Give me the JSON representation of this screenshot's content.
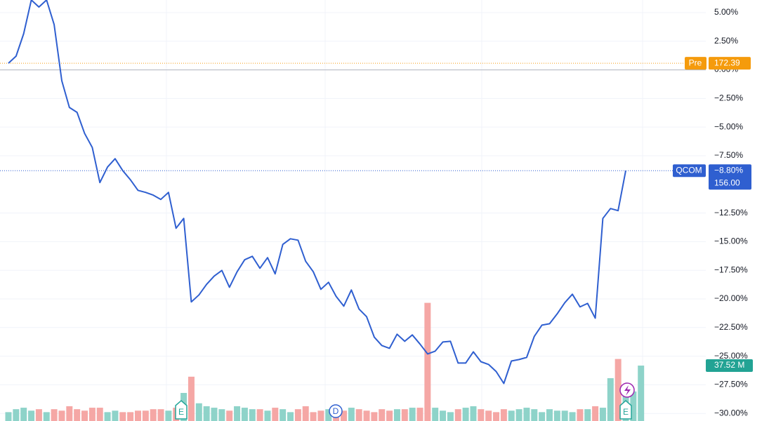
{
  "chart_data": {
    "type": "line",
    "series": [
      {
        "name": "QCOM",
        "color": "#2f5fd0",
        "values": [
          0.58,
          1.2,
          3.16,
          6.1,
          5.49,
          6.1,
          3.95,
          -0.95,
          -3.28,
          -3.71,
          -5.55,
          -6.78,
          -9.84,
          -8.49,
          -7.76,
          -8.8,
          -9.59,
          -10.52,
          -10.7,
          -10.94,
          -11.31,
          -10.7,
          -13.83,
          -12.97,
          -20.26,
          -19.65,
          -18.73,
          -18.0,
          -17.51,
          -18.98,
          -17.63,
          -16.58,
          -16.28,
          -17.32,
          -16.4,
          -17.81,
          -15.24,
          -14.75,
          -14.87,
          -16.71,
          -17.63,
          -19.16,
          -18.55,
          -19.78,
          -20.63,
          -19.22,
          -20.88,
          -21.55,
          -23.33,
          -24.07,
          -24.31,
          -23.08,
          -23.7,
          -23.14,
          -23.94,
          -24.8,
          -24.56,
          -23.76,
          -23.7,
          -25.6,
          -25.6,
          -24.62,
          -25.48,
          -25.72,
          -26.34,
          -27.38,
          -25.42,
          -25.29,
          -25.11,
          -23.27,
          -22.29,
          -22.17,
          -21.31,
          -20.33,
          -19.59,
          -20.7,
          -20.39,
          -21.68,
          -12.97,
          -12.11,
          -12.29,
          -8.8
        ],
        "last_value_label": "−8.80%",
        "last_price_label": "156.00"
      }
    ],
    "volume": {
      "values": [
        6,
        8,
        9,
        7,
        8,
        6,
        8,
        7,
        10,
        8,
        7,
        9,
        9,
        6,
        7,
        6,
        6,
        7,
        7,
        8,
        8,
        7,
        9,
        19,
        30,
        12,
        10,
        9,
        8,
        7,
        10,
        9,
        8,
        8,
        7,
        9,
        8,
        6,
        8,
        10,
        6,
        7,
        8,
        9,
        7,
        9,
        8,
        7,
        6,
        8,
        7,
        8,
        8,
        9,
        9,
        80,
        9,
        7,
        6,
        8,
        9,
        10,
        8,
        7,
        6,
        8,
        7,
        8,
        9,
        8,
        6,
        8,
        7,
        7,
        6,
        8,
        8,
        10,
        9,
        29,
        42,
        20,
        20,
        37.52
      ],
      "up_color": "#8ed3c9",
      "down_color": "#f5a7a5",
      "last_label": "37.52 M",
      "label_color": "#22a394"
    },
    "premarket": {
      "label": "Pre",
      "price_label": "172.39",
      "value": 0.58,
      "color": "#f59b0c"
    },
    "baseline": 0,
    "ylim": [
      -30.66,
      6.1
    ],
    "yticks": [
      {
        "value": 5,
        "label": "5.00%"
      },
      {
        "value": 2.5,
        "label": "2.50%"
      },
      {
        "value": 0,
        "label": "0.00%"
      },
      {
        "value": -2.5,
        "label": "−2.50%"
      },
      {
        "value": -5,
        "label": "−5.00%"
      },
      {
        "value": -7.5,
        "label": "−7.50%"
      },
      {
        "value": -12.5,
        "label": "−12.50%"
      },
      {
        "value": -15,
        "label": "−15.00%"
      },
      {
        "value": -17.5,
        "label": "−17.50%"
      },
      {
        "value": -20,
        "label": "−20.00%"
      },
      {
        "value": -22.5,
        "label": "−22.50%"
      },
      {
        "value": -25,
        "label": "−25.00%"
      },
      {
        "value": -27.5,
        "label": "−27.50%"
      },
      {
        "value": -30,
        "label": "−30.00%"
      }
    ],
    "grid": true,
    "events": [
      "E",
      "D",
      "E"
    ]
  }
}
